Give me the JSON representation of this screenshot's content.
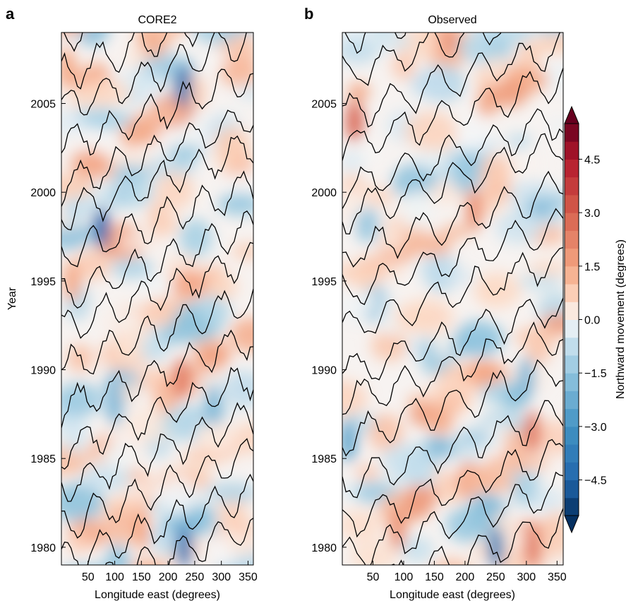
{
  "chart_data": [
    {
      "type": "heatmap",
      "panel_label": "a",
      "title": "CORE2",
      "xlabel": "Longitude east (degrees)",
      "ylabel": "Year",
      "xlim": [
        0,
        360
      ],
      "ylim": [
        1979,
        2009
      ],
      "x_ticks": [
        50,
        100,
        150,
        200,
        250,
        300,
        350
      ],
      "y_ticks": [
        1980,
        1985,
        1990,
        1995,
        2000,
        2005
      ],
      "zero_contour": true,
      "features": [
        {
          "lon": 228,
          "year": 2006,
          "value": -4.0
        },
        {
          "lon": 75,
          "year": 1998,
          "value": -4.5
        },
        {
          "lon": 230,
          "year": 1980,
          "value": -4.0
        },
        {
          "lon": 225,
          "year": 1989.5,
          "value": 2.5
        },
        {
          "lon": 20,
          "year": 1995,
          "value": 1.5
        },
        {
          "lon": 10,
          "year": 2007,
          "value": 1.5
        },
        {
          "lon": 100,
          "year": 1988,
          "value": -2.0
        },
        {
          "lon": 285,
          "year": 1988,
          "value": -2.0
        },
        {
          "lon": 150,
          "year": 1981,
          "value": 1.5
        }
      ]
    },
    {
      "type": "heatmap",
      "panel_label": "b",
      "title": "Observed",
      "xlabel": "Longitude east (degrees)",
      "ylabel": "",
      "xlim": [
        0,
        360
      ],
      "ylim": [
        1979,
        2009
      ],
      "x_ticks": [
        50,
        100,
        150,
        200,
        250,
        300,
        350
      ],
      "y_ticks": [
        1980,
        1985,
        1990,
        1995,
        2000,
        2005
      ],
      "zero_contour": true,
      "features": [
        {
          "lon": 20,
          "year": 2004,
          "value": 3.0
        },
        {
          "lon": 215,
          "year": 1999,
          "value": 2.0
        },
        {
          "lon": 310,
          "year": 1986.5,
          "value": 2.5
        },
        {
          "lon": 310,
          "year": 1980,
          "value": 2.5
        },
        {
          "lon": 90,
          "year": 1981,
          "value": 2.0
        },
        {
          "lon": 250,
          "year": 1980,
          "value": -3.5
        },
        {
          "lon": 300,
          "year": 1989.5,
          "value": -2.0
        },
        {
          "lon": 10,
          "year": 1986,
          "value": -2.5
        }
      ]
    }
  ],
  "colorbar": {
    "label": "Northward movement (degrees)",
    "min": -5.5,
    "max": 5.5,
    "ticks": [
      "4.5",
      "3.0",
      "1.5",
      "0.0",
      "−1.5",
      "−3.0",
      "−4.5"
    ],
    "tick_values": [
      4.5,
      3.0,
      1.5,
      0.0,
      -1.5,
      -3.0,
      -4.5
    ],
    "colormap": "RdBu_r",
    "extend": "both"
  }
}
